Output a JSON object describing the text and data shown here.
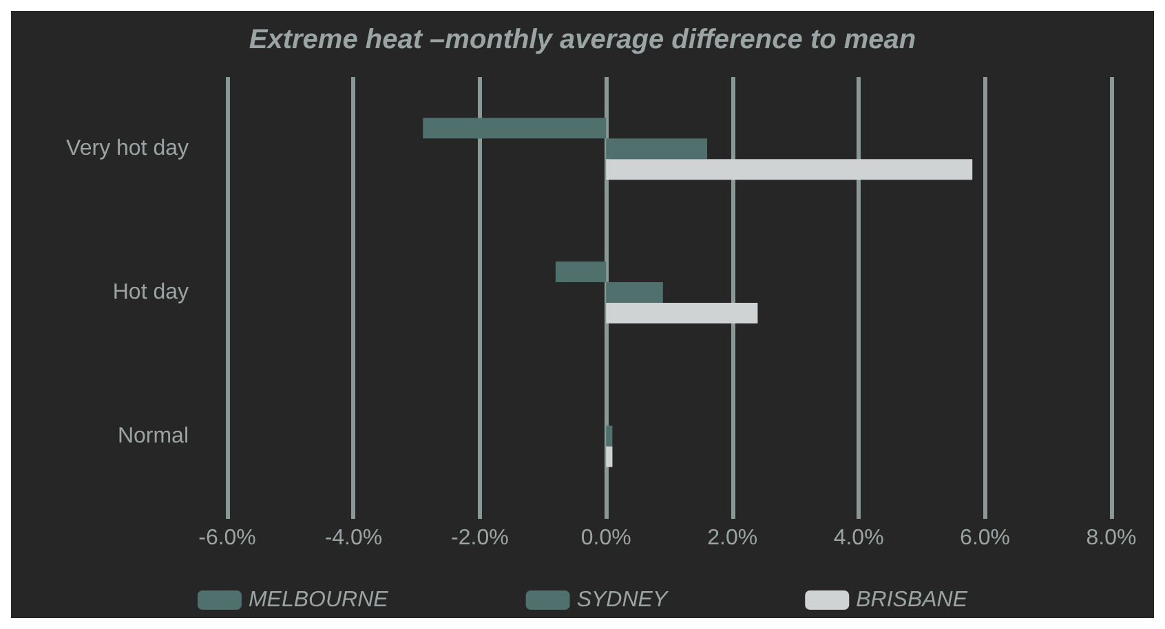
{
  "chart_data": {
    "type": "bar",
    "orientation": "horizontal",
    "title": "Extreme heat –monthly average difference to mean",
    "categories": [
      "Very hot day",
      "Hot day",
      "Normal"
    ],
    "series": [
      {
        "name": "MELBOURNE",
        "color": "#4f706c",
        "values": [
          -2.9,
          -0.8,
          0
        ]
      },
      {
        "name": "SYDNEY",
        "color": "#4f706c",
        "values": [
          1.6,
          0.9,
          0.1
        ]
      },
      {
        "name": "BRISBANE",
        "color": "#cfd3d3",
        "values": [
          5.8,
          2.4,
          0.1
        ]
      }
    ],
    "xlim": [
      -6,
      8
    ],
    "xticks": [
      {
        "value": -6,
        "label": "-6.0%"
      },
      {
        "value": -4,
        "label": "-4.0%"
      },
      {
        "value": -2,
        "label": "-2.0%"
      },
      {
        "value": 0,
        "label": "0.0%"
      },
      {
        "value": 2,
        "label": "2.0%"
      },
      {
        "value": 4,
        "label": "4.0%"
      },
      {
        "value": 6,
        "label": "6.0%"
      },
      {
        "value": 8,
        "label": "8.0%"
      }
    ],
    "grid": "x",
    "legend": "bottom"
  }
}
